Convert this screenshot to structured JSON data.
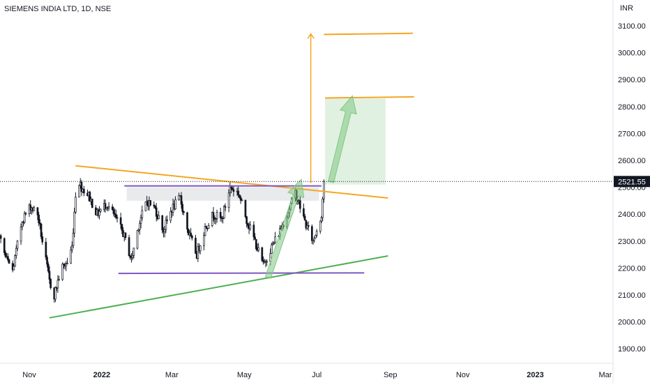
{
  "chart_data": {
    "type": "candlestick",
    "title": "SIEMENS INDIA LTD, 1D, NSE",
    "unit": "INR",
    "last_price": "2521.55",
    "y_range": [
      1840,
      3160
    ],
    "y_ticks": [
      "1900.00",
      "2000.00",
      "2100.00",
      "2200.00",
      "2300.00",
      "2400.00",
      "2500.00",
      "2600.00",
      "2700.00",
      "2800.00",
      "2900.00",
      "3000.00",
      "3100.00"
    ],
    "x_ticks": [
      {
        "label": "Nov",
        "date": "2021-11-01",
        "bold": false
      },
      {
        "label": "2022",
        "date": "2022-01-01",
        "bold": true
      },
      {
        "label": "Mar",
        "date": "2022-03-01",
        "bold": false
      },
      {
        "label": "May",
        "date": "2022-05-01",
        "bold": false
      },
      {
        "label": "Jul",
        "date": "2022-07-01",
        "bold": false
      },
      {
        "label": "Sep",
        "date": "2022-09-01",
        "bold": false
      },
      {
        "label": "Nov",
        "date": "2022-11-01",
        "bold": false
      },
      {
        "label": "2023",
        "date": "2023-01-01",
        "bold": true
      },
      {
        "label": "Mar",
        "date": "2023-03-01",
        "bold": false
      }
    ],
    "price_path": [
      [
        "2021-09-20",
        2270
      ],
      [
        "2021-09-28",
        2230
      ],
      [
        "2021-10-06",
        2330
      ],
      [
        "2021-10-12",
        2240
      ],
      [
        "2021-10-18",
        2190
      ],
      [
        "2021-10-26",
        2380
      ],
      [
        "2021-11-02",
        2430
      ],
      [
        "2021-11-08",
        2400
      ],
      [
        "2021-11-12",
        2300
      ],
      [
        "2021-11-18",
        2150
      ],
      [
        "2021-11-22",
        2100
      ],
      [
        "2021-11-28",
        2200
      ],
      [
        "2021-12-03",
        2220
      ],
      [
        "2021-12-07",
        2280
      ],
      [
        "2021-12-11",
        2540
      ],
      [
        "2021-12-15",
        2500
      ],
      [
        "2021-12-21",
        2470
      ],
      [
        "2021-12-28",
        2400
      ],
      [
        "2022-01-05",
        2440
      ],
      [
        "2022-01-12",
        2390
      ],
      [
        "2022-01-19",
        2330
      ],
      [
        "2022-01-26",
        2230
      ],
      [
        "2022-02-01",
        2360
      ],
      [
        "2022-02-08",
        2450
      ],
      [
        "2022-02-15",
        2420
      ],
      [
        "2022-02-22",
        2340
      ],
      [
        "2022-03-01",
        2420
      ],
      [
        "2022-03-08",
        2460
      ],
      [
        "2022-03-15",
        2330
      ],
      [
        "2022-03-22",
        2250
      ],
      [
        "2022-03-29",
        2350
      ],
      [
        "2022-04-05",
        2400
      ],
      [
        "2022-04-12",
        2380
      ],
      [
        "2022-04-19",
        2500
      ],
      [
        "2022-04-26",
        2480
      ],
      [
        "2022-05-03",
        2380
      ],
      [
        "2022-05-10",
        2300
      ],
      [
        "2022-05-17",
        2210
      ],
      [
        "2022-05-23",
        2270
      ],
      [
        "2022-05-30",
        2330
      ],
      [
        "2022-06-06",
        2400
      ],
      [
        "2022-06-13",
        2480
      ],
      [
        "2022-06-16",
        2440
      ],
      [
        "2022-06-22",
        2360
      ],
      [
        "2022-06-28",
        2300
      ],
      [
        "2022-07-05",
        2400
      ],
      [
        "2022-07-07",
        2521.55
      ]
    ],
    "drawings": [
      {
        "kind": "trendline",
        "color": "#f5a623",
        "from": [
          "2021-12-10",
          2580
        ],
        "to": [
          "2022-08-30",
          2460
        ]
      },
      {
        "kind": "trendline",
        "color": "#4caf50",
        "from": [
          "2021-11-18",
          2015
        ],
        "to": [
          "2022-08-30",
          2245
        ]
      },
      {
        "kind": "trendline",
        "color": "#7e57c2",
        "from": [
          "2022-01-20",
          2505
        ],
        "to": [
          "2022-07-05",
          2505
        ]
      },
      {
        "kind": "trendline",
        "color": "#7e57c2",
        "from": [
          "2022-01-15",
          2180
        ],
        "to": [
          "2022-08-10",
          2182
        ]
      },
      {
        "kind": "trendline",
        "color": "#f5a623",
        "from": [
          "2022-07-07",
          3068
        ],
        "to": [
          "2022-09-20",
          3072
        ]
      },
      {
        "kind": "trendline",
        "color": "#f5a623",
        "from": [
          "2022-07-08",
          2832
        ],
        "to": [
          "2022-09-21",
          2836
        ]
      }
    ],
    "zones": [
      {
        "color": "#d6d8dd",
        "from": [
          "2022-01-22",
          2500
        ],
        "to": [
          "2022-07-03",
          2450
        ]
      },
      {
        "color": "#c8e6c9",
        "from": [
          "2022-07-08",
          2830
        ],
        "to": [
          "2022-08-28",
          2510
        ]
      }
    ],
    "arrows": [
      {
        "color": "#f5a623",
        "from": [
          "2022-06-26",
          2515
        ],
        "to": [
          "2022-06-26",
          3070
        ]
      },
      {
        "color": "#81c784",
        "from": [
          "2022-05-21",
          2165
        ],
        "to": [
          "2022-06-18",
          2530
        ]
      },
      {
        "color": "#81c784",
        "from": [
          "2022-07-13",
          2520
        ],
        "to": [
          "2022-07-31",
          2840
        ]
      }
    ],
    "colors": {
      "up": "#ffffff",
      "down": "#131722",
      "grid": "#e0e3eb",
      "axis_text": "#131722"
    },
    "grid": false
  }
}
